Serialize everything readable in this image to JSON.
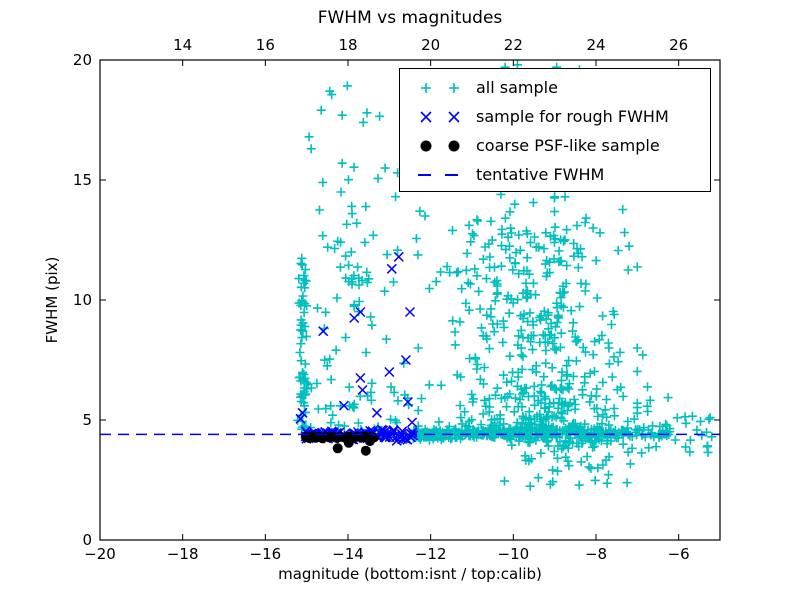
{
  "chart_data": {
    "type": "scatter",
    "title": "FWHM vs magnitudes",
    "xlabel": "magnitude (bottom:isnt / top:calib)",
    "ylabel": "FWHM (pix)",
    "xlim": [
      -20,
      -5
    ],
    "ylim": [
      0,
      20
    ],
    "grid": false,
    "legend_position": "upper center-right",
    "tentative_fwhm": 4.4,
    "colors": {
      "all_sample": "#00bfbf",
      "rough_fwhm": "#0000ff",
      "coarse_psf": "#000000",
      "tentative_line": "#0000ff",
      "axis": "#000000",
      "background": "#ffffff"
    },
    "x_ticks_bottom": {
      "positions": [
        -20,
        -18,
        -16,
        -14,
        -12,
        -10,
        -8,
        -6
      ],
      "labels": [
        "−20",
        "−18",
        "−16",
        "−14",
        "−12",
        "−10",
        "−8",
        "−6"
      ]
    },
    "x_ticks_top": {
      "positions": [
        -18,
        -16,
        -14,
        -12,
        -10,
        -8,
        -6
      ],
      "labels": [
        "14",
        "16",
        "18",
        "20",
        "22",
        "24",
        "26"
      ]
    },
    "y_ticks": {
      "positions": [
        0,
        5,
        10,
        15,
        20
      ],
      "labels": [
        "0",
        "5",
        "10",
        "15",
        "20"
      ]
    },
    "legend": [
      {
        "label": "all sample",
        "marker": "plus",
        "color": "#00bfbf"
      },
      {
        "label": "sample for rough FWHM",
        "marker": "cross",
        "color": "#0000ff"
      },
      {
        "label": "coarse PSF-like sample",
        "marker": "dot",
        "color": "#000000"
      },
      {
        "label": "tentative FWHM",
        "marker": "dash",
        "color": "#0000ff"
      }
    ],
    "series": {
      "coarse_psf_points": [
        [
          -15.02,
          4.3
        ],
        [
          -14.94,
          4.25
        ],
        [
          -14.86,
          4.32
        ],
        [
          -14.78,
          4.26
        ],
        [
          -14.7,
          4.3
        ],
        [
          -14.62,
          4.24
        ],
        [
          -14.54,
          4.31
        ],
        [
          -14.45,
          4.27
        ],
        [
          -14.36,
          4.3
        ],
        [
          -14.27,
          4.25
        ],
        [
          -14.17,
          4.3
        ],
        [
          -14.07,
          4.26
        ],
        [
          -13.97,
          4.3
        ],
        [
          -13.88,
          4.25
        ],
        [
          -13.78,
          4.3
        ],
        [
          -13.68,
          4.27
        ],
        [
          -13.58,
          4.31
        ],
        [
          -13.5,
          4.26
        ],
        [
          -13.43,
          4.3
        ],
        [
          -13.37,
          4.27
        ],
        [
          -14.25,
          3.82
        ],
        [
          -13.57,
          3.72
        ],
        [
          -13.98,
          4.05
        ],
        [
          -13.47,
          4.12
        ]
      ],
      "rough_fwhm_outliers": [
        [
          -12.77,
          11.8
        ],
        [
          -12.94,
          11.3
        ],
        [
          -12.5,
          9.5
        ],
        [
          -13.7,
          9.5
        ],
        [
          -13.85,
          9.25
        ],
        [
          -14.6,
          8.7
        ],
        [
          -12.6,
          7.5
        ],
        [
          -13.0,
          7.0
        ],
        [
          -13.7,
          6.75
        ],
        [
          -13.65,
          6.25
        ],
        [
          -12.55,
          5.75
        ],
        [
          -13.3,
          5.3
        ],
        [
          -15.1,
          5.3
        ],
        [
          -15.15,
          5.05
        ],
        [
          -14.1,
          5.6
        ],
        [
          -12.45,
          4.9
        ]
      ],
      "all_sample_landmarks": [
        [
          -14.44,
          18.7
        ],
        [
          -14.14,
          17.7
        ],
        [
          -13.54,
          17.8
        ],
        [
          -13.63,
          17.4
        ],
        [
          -14.94,
          16.8
        ],
        [
          -14.89,
          16.3
        ],
        [
          -14.14,
          15.7
        ],
        [
          -14.61,
          14.9
        ],
        [
          -14.17,
          14.5
        ],
        [
          -13.91,
          13.9
        ],
        [
          -14.69,
          13.75
        ],
        [
          -13.9,
          13.6
        ],
        [
          -13.79,
          13.2
        ],
        [
          -13.59,
          12.4
        ],
        [
          -13.92,
          12.0
        ],
        [
          -12.8,
          15.3
        ],
        [
          -10.2,
          19.7
        ],
        [
          -9.9,
          19.8
        ],
        [
          -8.95,
          19.7
        ],
        [
          -8.4,
          19.6
        ],
        [
          -10.3,
          14.4
        ],
        [
          -9.0,
          14.3
        ],
        [
          -8.75,
          14.3
        ],
        [
          -8.46,
          13.1
        ],
        [
          -8.07,
          13.0
        ],
        [
          -7.22,
          11.25
        ],
        [
          -7.56,
          9.4
        ],
        [
          -5.24,
          5.1
        ],
        [
          -5.2,
          4.3
        ],
        [
          -5.56,
          4.58
        ],
        [
          -5.73,
          3.67
        ]
      ]
    },
    "generated_clusters": {
      "seed": 1337,
      "clusters": [
        {
          "series": "all",
          "count": 60,
          "x": {
            "t": "gauss",
            "mean": -15.08,
            "sd": 0.06,
            "min": -15.22,
            "max": -14.95
          },
          "y": {
            "t": "uniform",
            "min": 4.5,
            "max": 12.3
          }
        },
        {
          "series": "all",
          "count": 70,
          "x": {
            "t": "uniform",
            "min": -15.15,
            "max": -12.5
          },
          "y": {
            "t": "power",
            "a": 4.6,
            "b": 12.2,
            "exp": 2.0
          }
        },
        {
          "series": "all",
          "count": 16,
          "x": {
            "t": "uniform",
            "min": -15.1,
            "max": -12.4
          },
          "y": {
            "t": "uniform",
            "min": 12.3,
            "max": 19.0
          }
        },
        {
          "series": "all",
          "count": 12,
          "x": {
            "t": "uniform",
            "min": -14.15,
            "max": -13.45
          },
          "y": {
            "t": "uniform",
            "min": 10.6,
            "max": 11.5
          }
        },
        {
          "series": "all",
          "count": 430,
          "x": {
            "t": "gauss",
            "mean": -9.4,
            "sd": 1.05,
            "min": -12.3,
            "max": -7.0
          },
          "y": {
            "t": "power",
            "a": 4.55,
            "b": 13.0,
            "exp": 2.2
          }
        },
        {
          "series": "all",
          "count": 90,
          "x": {
            "t": "gauss",
            "mean": -9.6,
            "sd": 1.3,
            "min": -12.6,
            "max": -7.2
          },
          "y": {
            "t": "uniform",
            "min": 8.5,
            "max": 14.3
          }
        },
        {
          "series": "all",
          "count": 22,
          "x": {
            "t": "uniform",
            "min": -12.6,
            "max": -8.0
          },
          "y": {
            "t": "uniform",
            "min": 14.5,
            "max": 19.8
          }
        },
        {
          "series": "all",
          "count": 380,
          "x": {
            "t": "power",
            "a": -12.42,
            "b": -6.2,
            "exp": 1.5
          },
          "y": {
            "t": "gauss",
            "mean": 4.4,
            "sd": 0.09,
            "min": 4.1,
            "max": 4.7
          }
        },
        {
          "series": "all",
          "count": 70,
          "x": {
            "t": "gauss",
            "mean": -8.6,
            "sd": 0.9,
            "min": -10.3,
            "max": -6.3
          },
          "y": {
            "t": "power",
            "a": 4.15,
            "b": 2.2,
            "exp": 1.8
          }
        },
        {
          "series": "all",
          "count": 14,
          "x": {
            "t": "uniform",
            "min": -6.2,
            "max": -5.15
          },
          "y": {
            "t": "uniform",
            "min": 3.6,
            "max": 5.2
          }
        },
        {
          "series": "all",
          "count": 18,
          "x": {
            "t": "uniform",
            "min": -7.4,
            "max": -6.2
          },
          "y": {
            "t": "power",
            "a": 4.6,
            "b": 8.0,
            "exp": 2.0
          }
        },
        {
          "series": "rough",
          "count": 115,
          "x": {
            "t": "uniform",
            "min": -15.05,
            "max": -12.42
          },
          "y": {
            "t": "gauss",
            "mean": 4.38,
            "sd": 0.1,
            "min": 4.05,
            "max": 4.75
          }
        }
      ]
    }
  }
}
